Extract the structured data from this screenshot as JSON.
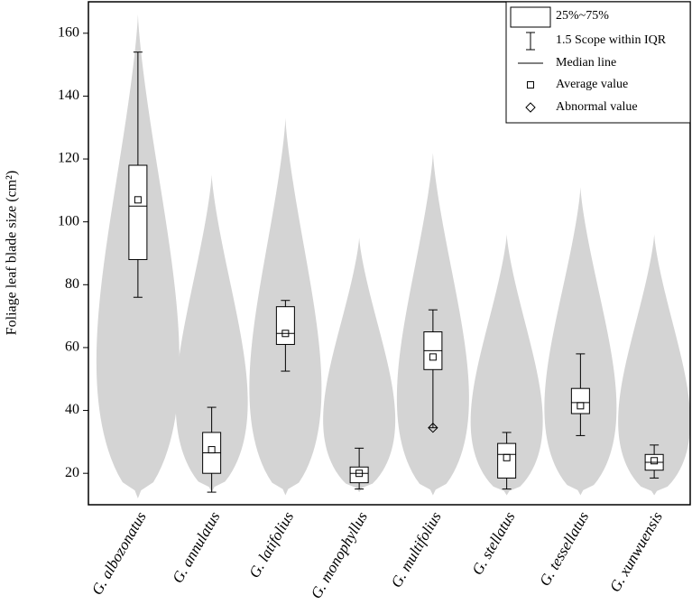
{
  "chart_data": {
    "type": "violin-box",
    "y_label": "Foliage leaf blade size (cm²)",
    "categories": [
      "G. albozonatus",
      "G. annulatus",
      "G. latifolius",
      "G. monophyllus",
      "G. multifolius",
      "G. stellatus",
      "G. tessellatus",
      "G. xunwuensis"
    ],
    "violin_min": [
      12,
      14,
      13,
      14,
      13,
      13,
      13,
      13
    ],
    "violin_max": [
      166,
      115,
      133,
      95,
      122,
      96,
      111,
      96
    ],
    "whisker_low": [
      76,
      14,
      52.5,
      15,
      34.5,
      15,
      32,
      18.5
    ],
    "q1": [
      88,
      20,
      61,
      17,
      53,
      18.5,
      39,
      21
    ],
    "median": [
      105,
      26.5,
      64.5,
      20,
      59,
      26,
      42.5,
      23.5
    ],
    "q3": [
      118,
      33,
      73,
      22,
      65,
      29.5,
      47,
      26
    ],
    "whisker_high": [
      154,
      41,
      75,
      28,
      72,
      33,
      58,
      29
    ],
    "mean": [
      107,
      27.5,
      64.5,
      20,
      57,
      25,
      41.5,
      24
    ],
    "outliers": [
      [],
      [],
      [],
      [],
      [
        34.5
      ],
      [],
      [],
      []
    ],
    "violin_color": "#d4d4d4",
    "legend": [
      "25%~75%",
      "1.5 Scope within IQR",
      "Median line",
      "Average value",
      "Abnormal value"
    ],
    "ylim": [
      10,
      170
    ],
    "yticks": [
      20,
      40,
      60,
      80,
      100,
      120,
      140,
      160
    ]
  }
}
